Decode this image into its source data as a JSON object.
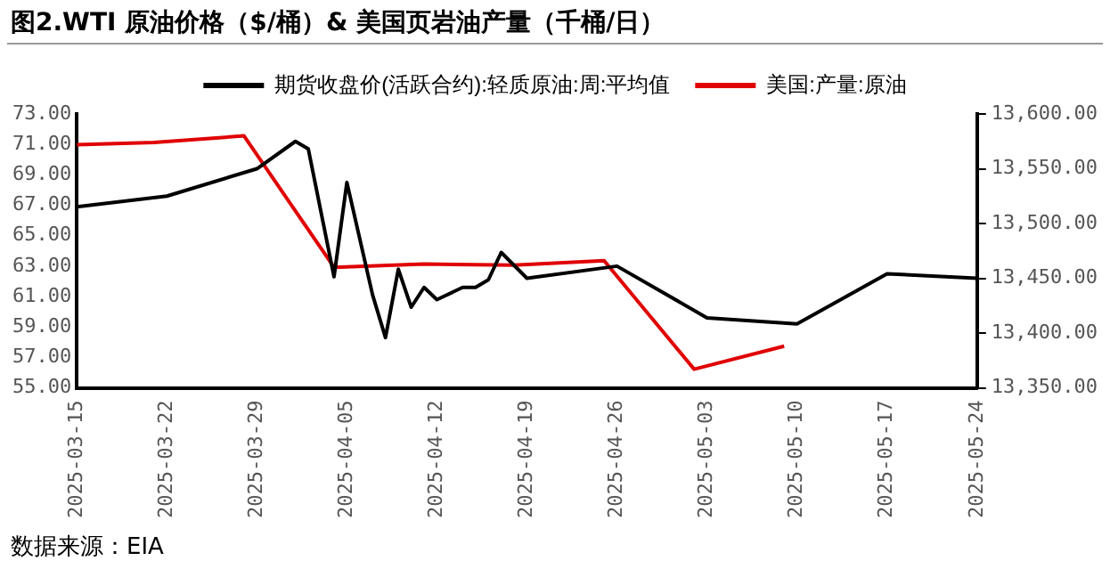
{
  "chart_data": {
    "type": "line",
    "title": "图2.WTI 原油价格（$/桶）& 美国页岩油产量（千桶/日）",
    "series": [
      {
        "name": "期货收盘价(活跃合约):轻质原油:周:平均值",
        "color": "#000000",
        "x": [
          "2025-03-15",
          "2025-03-22",
          "2025-03-29",
          "2025-04-01",
          "2025-04-02",
          "2025-04-04",
          "2025-04-05",
          "2025-04-07",
          "2025-04-08",
          "2025-04-09",
          "2025-04-10",
          "2025-04-11",
          "2025-04-12",
          "2025-04-14",
          "2025-04-15",
          "2025-04-16",
          "2025-04-17",
          "2025-04-19",
          "2025-04-26",
          "2025-05-03",
          "2025-05-10",
          "2025-05-17",
          "2025-05-24"
        ],
        "values": [
          66.9,
          67.6,
          69.4,
          71.2,
          70.7,
          62.3,
          68.5,
          61.1,
          58.3,
          62.8,
          60.3,
          61.6,
          60.8,
          61.6,
          61.6,
          62.1,
          63.9,
          62.2,
          63.0,
          59.6,
          59.2,
          62.5,
          62.2
        ]
      },
      {
        "name": "美国:产量:原油",
        "color": "#e00000",
        "axis": "y2",
        "x": [
          "2025-03-15",
          "2025-03-21",
          "2025-03-28",
          "2025-04-04",
          "2025-04-11",
          "2025-04-18",
          "2025-04-25",
          "2025-05-02",
          "2025-05-09"
        ],
        "values": [
          13572,
          13574,
          13580,
          13460,
          13463,
          13462,
          13466,
          13367,
          13388
        ]
      }
    ],
    "xlim": [
      "2025-03-15",
      "2025-05-24"
    ],
    "xticks": [
      "2025-03-15",
      "2025-03-22",
      "2025-03-29",
      "2025-04-05",
      "2025-04-12",
      "2025-04-19",
      "2025-04-26",
      "2025-05-03",
      "2025-05-10",
      "2025-05-17",
      "2025-05-24"
    ],
    "ylim": [
      55,
      73
    ],
    "yticks": [
      {
        "value": 55,
        "label": "55.00"
      },
      {
        "value": 57,
        "label": "57.00"
      },
      {
        "value": 59,
        "label": "59.00"
      },
      {
        "value": 61,
        "label": "61.00"
      },
      {
        "value": 63,
        "label": "63.00"
      },
      {
        "value": 65,
        "label": "65.00"
      },
      {
        "value": 67,
        "label": "67.00"
      },
      {
        "value": 69,
        "label": "69.00"
      },
      {
        "value": 71,
        "label": "71.00"
      },
      {
        "value": 73,
        "label": "73.00"
      }
    ],
    "y2lim": [
      13350,
      13600
    ],
    "y2ticks": [
      {
        "value": 13350,
        "label": "13,350.00"
      },
      {
        "value": 13400,
        "label": "13,400.00"
      },
      {
        "value": 13450,
        "label": "13,450.00"
      },
      {
        "value": 13500,
        "label": "13,500.00"
      },
      {
        "value": 13550,
        "label": "13,550.00"
      },
      {
        "value": 13600,
        "label": "13,600.00"
      }
    ],
    "grid": false,
    "legend": "top",
    "marker": "none",
    "line_style": "solid",
    "annotations": [
      "数据来源：EIA"
    ]
  }
}
